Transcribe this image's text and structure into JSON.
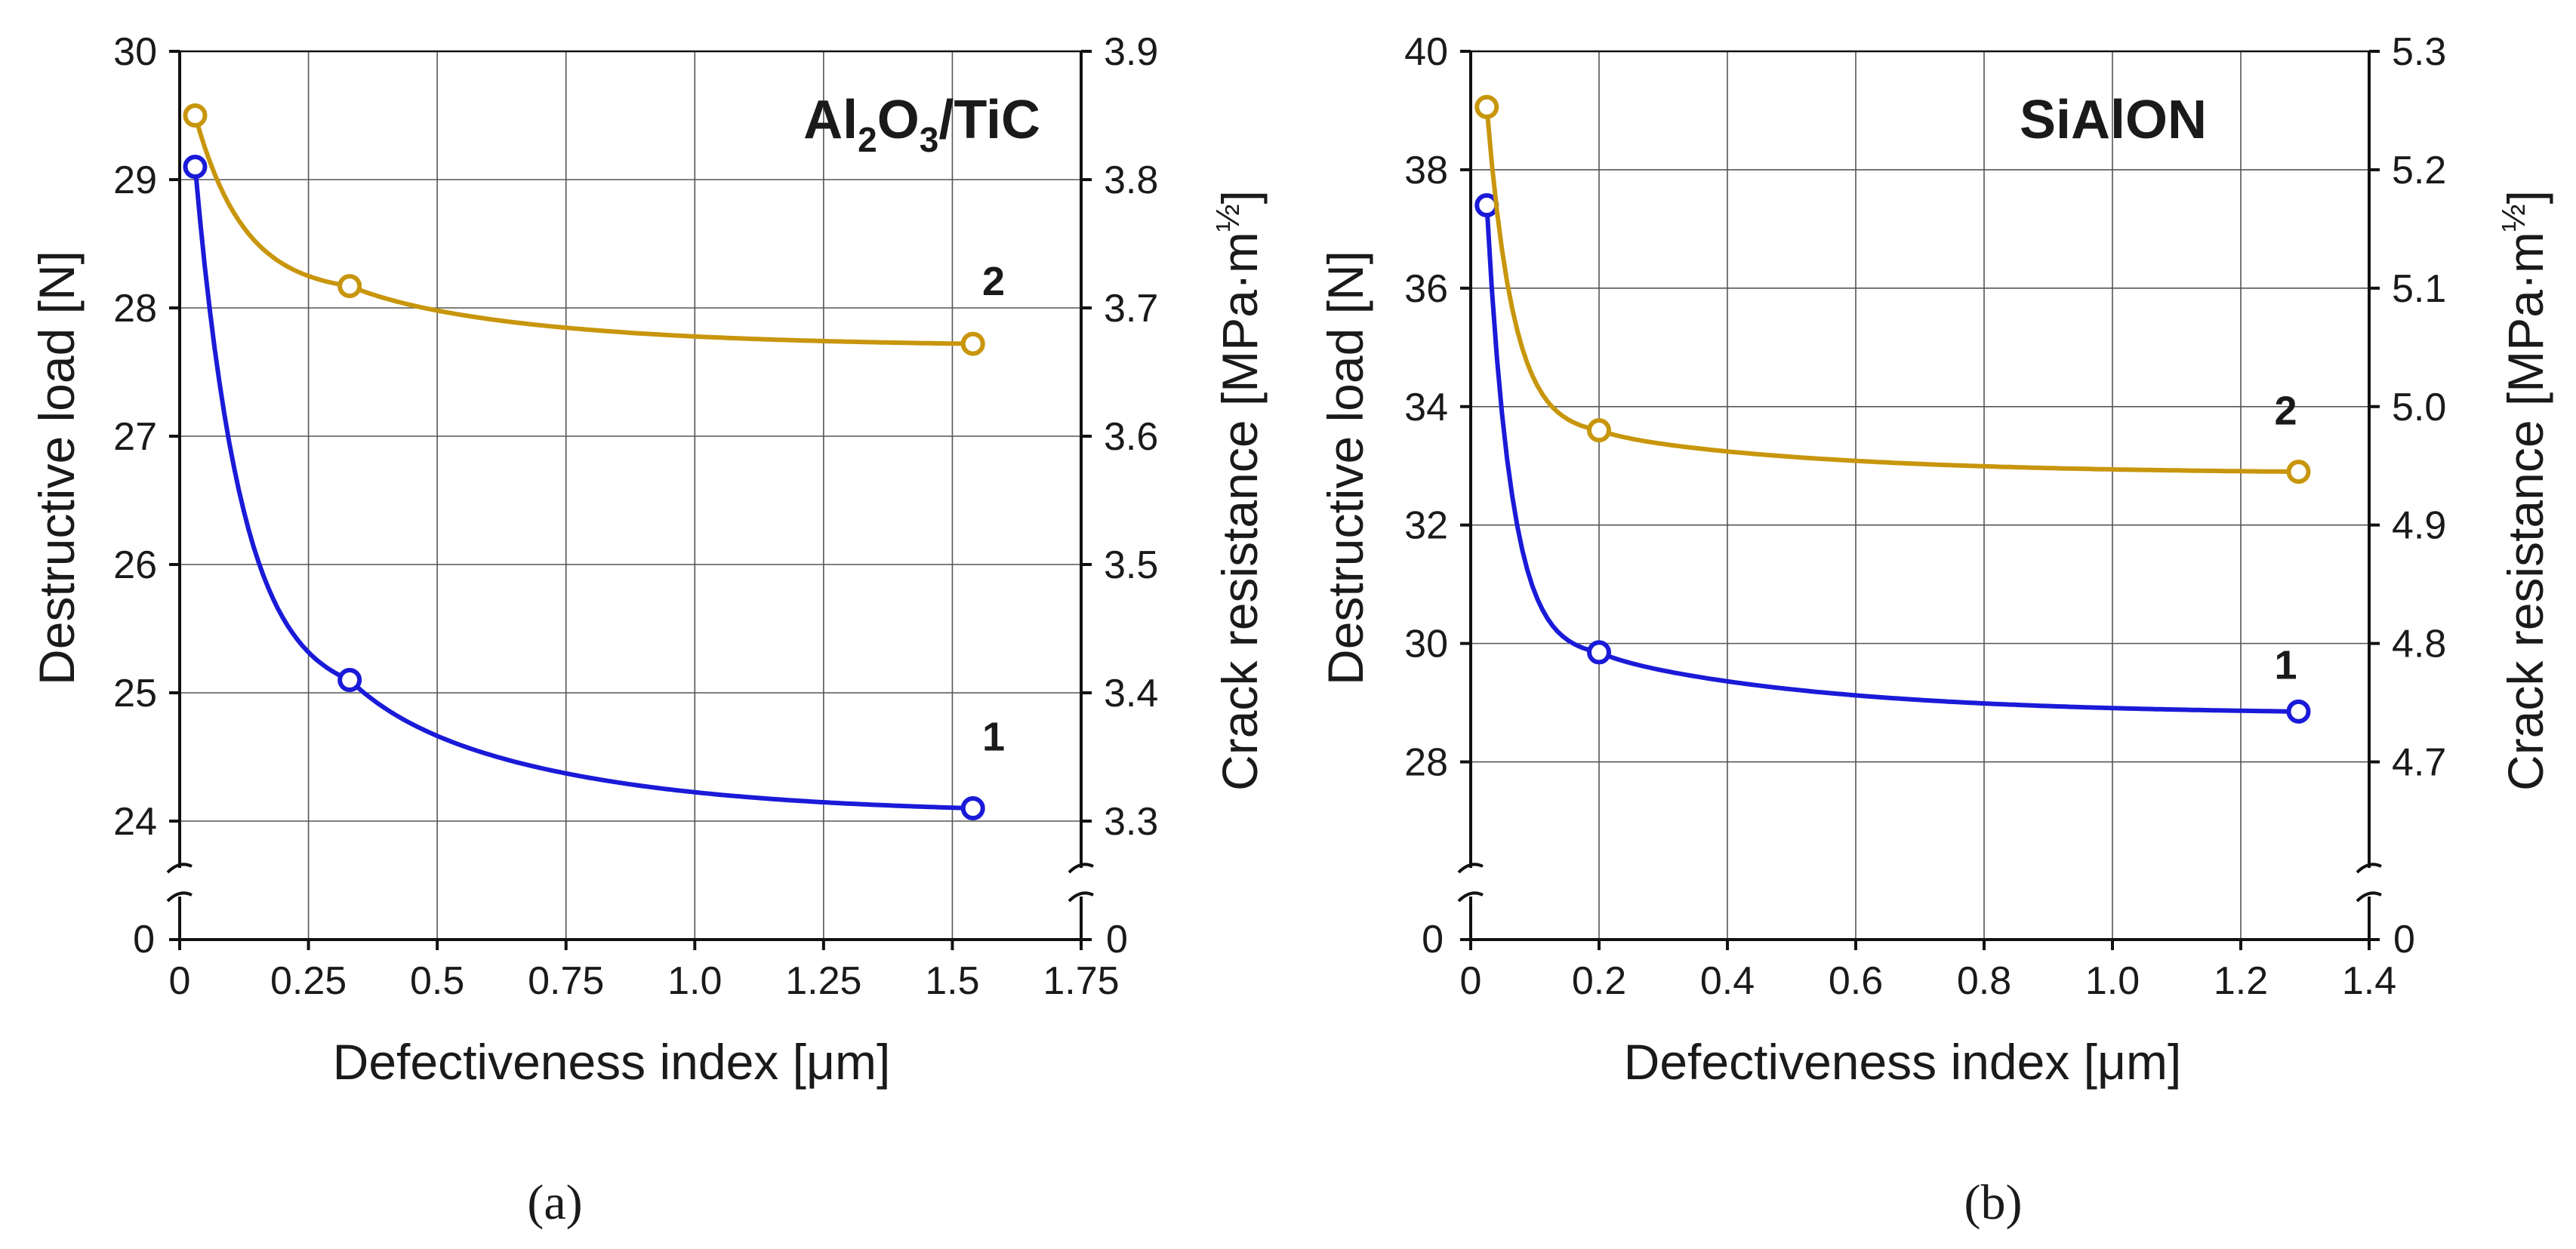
{
  "chart_data": [
    {
      "type": "line",
      "panel_label": "(a)",
      "title_parts": {
        "a": "Al",
        "b": "2",
        "c": "O",
        "d": "3",
        "e": "/TiC"
      },
      "xlabel": "Defectiveness index [μm]",
      "ylabel": "Destructive load [N]",
      "y2label": "Crack resistance [MPa·m",
      "y2label_exp": "½",
      "y2label_close": "]",
      "xlim": [
        0,
        1.75
      ],
      "x_ticks": [
        0,
        0.25,
        0.5,
        0.75,
        1.0,
        1.25,
        1.5,
        1.75
      ],
      "x_tick_labels": [
        "0",
        "0.25",
        "0.5",
        "0.75",
        "1.0",
        "1.25",
        "1.5",
        "1.75"
      ],
      "ylim": [
        24,
        30
      ],
      "y_ticks": [
        24,
        25,
        26,
        27,
        28,
        29,
        30
      ],
      "y_tick_labels": [
        "24",
        "25",
        "26",
        "27",
        "28",
        "29",
        "30"
      ],
      "y_zero_label": "0",
      "y2lim": [
        3.3,
        3.9
      ],
      "y2_ticks": [
        3.3,
        3.4,
        3.5,
        3.6,
        3.7,
        3.8,
        3.9
      ],
      "y2_tick_labels": [
        "3.3",
        "3.4",
        "3.5",
        "3.6",
        "3.7",
        "3.8",
        "3.9"
      ],
      "y2_zero_label": "0",
      "series": [
        {
          "name": "1",
          "color": "#1a1ad8",
          "axis": "left",
          "x": [
            0.03,
            0.33,
            1.54
          ],
          "y": [
            29.1,
            25.1,
            24.1
          ],
          "curve_k": 11.0,
          "label_at": [
            1.58,
            24.55
          ]
        },
        {
          "name": "2",
          "color": "#c8960c",
          "axis": "right",
          "x": [
            0.03,
            0.33,
            1.54
          ],
          "y": [
            3.85,
            3.717,
            3.672
          ],
          "curve_k": 10.5,
          "label_at": [
            1.58,
            3.71
          ]
        }
      ]
    },
    {
      "type": "line",
      "panel_label": "(b)",
      "title": "SiAlON",
      "xlabel": "Defectiveness index [μm]",
      "ylabel": "Destructive load [N]",
      "y2label": "Crack resistance [MPa·m",
      "y2label_exp": "½",
      "y2label_close": "]",
      "xlim": [
        0,
        1.4
      ],
      "x_ticks": [
        0,
        0.2,
        0.4,
        0.6,
        0.8,
        1.0,
        1.2,
        1.4
      ],
      "x_tick_labels": [
        "0",
        "0.2",
        "0.4",
        "0.6",
        "0.8",
        "1.0",
        "1.2",
        "1.4"
      ],
      "ylim": [
        27,
        40
      ],
      "y_ticks": [
        28,
        30,
        32,
        34,
        36,
        38,
        40
      ],
      "y_tick_labels": [
        "28",
        "30",
        "32",
        "34",
        "36",
        "38",
        "40"
      ],
      "y_zero_label": "0",
      "y2lim": [
        4.65,
        5.3
      ],
      "y2_ticks": [
        4.7,
        4.8,
        4.9,
        5.0,
        5.1,
        5.2,
        5.3
      ],
      "y2_tick_labels": [
        "4.7",
        "4.8",
        "4.9",
        "5.0",
        "5.1",
        "5.2",
        "5.3"
      ],
      "y2_zero_label": "0",
      "series": [
        {
          "name": "1",
          "color": "#1a1ad8",
          "axis": "left",
          "x": [
            0.025,
            0.2,
            1.29
          ],
          "y": [
            37.4,
            29.85,
            28.85
          ],
          "curve_k": 26.0,
          "label_at": [
            1.27,
            29.4
          ]
        },
        {
          "name": "2",
          "color": "#c8960c",
          "axis": "right",
          "x": [
            0.025,
            0.2,
            1.29
          ],
          "y": [
            5.253,
            4.98,
            4.945
          ],
          "curve_k": 24.0,
          "label_at": [
            1.27,
            4.985
          ]
        }
      ]
    }
  ]
}
